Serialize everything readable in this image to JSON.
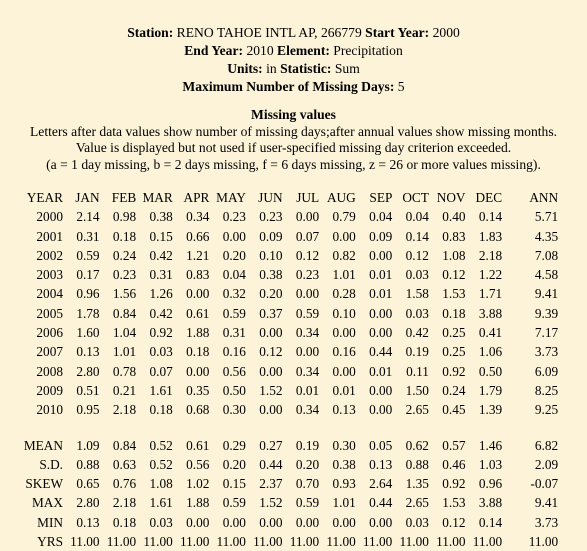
{
  "header": {
    "station_label": "Station:",
    "station_value": "RENO TAHOE INTL AP, 266779",
    "start_year_label": "Start Year:",
    "start_year_value": "2000",
    "end_year_label": "End Year:",
    "end_year_value": "2010",
    "element_label": "Element:",
    "element_value": "Precipitation",
    "units_label": "Units:",
    "units_value": "in",
    "statistic_label": "Statistic:",
    "statistic_value": "Sum",
    "max_missing_label": "Maximum Number of Missing Days:",
    "max_missing_value": "5"
  },
  "missing": {
    "title": "Missing values",
    "line1": "Letters after data values show number of missing days;after annual values show missing months.",
    "line2": "Value is displayed but not used if user-specified missing day criterion exceeded.",
    "line3": "(a = 1 day missing, b = 2 days missing, f = 6 days missing, z = 26 or more values missing)."
  },
  "table": {
    "columns": [
      "YEAR",
      "JAN",
      "FEB",
      "MAR",
      "APR",
      "MAY",
      "JUN",
      "JUL",
      "AUG",
      "SEP",
      "OCT",
      "NOV",
      "DEC",
      "ANN"
    ],
    "rows": [
      [
        "2000",
        "2.14",
        "0.98",
        "0.38",
        "0.34",
        "0.23",
        "0.23",
        "0.00",
        "0.79",
        "0.04",
        "0.04",
        "0.40",
        "0.14",
        "5.71"
      ],
      [
        "2001",
        "0.31",
        "0.18",
        "0.15",
        "0.66",
        "0.00",
        "0.09",
        "0.07",
        "0.00",
        "0.09",
        "0.14",
        "0.83",
        "1.83",
        "4.35"
      ],
      [
        "2002",
        "0.59",
        "0.24",
        "0.42",
        "1.21",
        "0.20",
        "0.10",
        "0.12",
        "0.82",
        "0.00",
        "0.12",
        "1.08",
        "2.18",
        "7.08"
      ],
      [
        "2003",
        "0.17",
        "0.23",
        "0.31",
        "0.83",
        "0.04",
        "0.38",
        "0.23",
        "1.01",
        "0.01",
        "0.03",
        "0.12",
        "1.22",
        "4.58"
      ],
      [
        "2004",
        "0.96",
        "1.56",
        "1.26",
        "0.00",
        "0.32",
        "0.20",
        "0.00",
        "0.28",
        "0.01",
        "1.58",
        "1.53",
        "1.71",
        "9.41"
      ],
      [
        "2005",
        "1.78",
        "0.84",
        "0.42",
        "0.61",
        "0.59",
        "0.37",
        "0.59",
        "0.10",
        "0.00",
        "0.03",
        "0.18",
        "3.88",
        "9.39"
      ],
      [
        "2006",
        "1.60",
        "1.04",
        "0.92",
        "1.88",
        "0.31",
        "0.00",
        "0.34",
        "0.00",
        "0.00",
        "0.42",
        "0.25",
        "0.41",
        "7.17"
      ],
      [
        "2007",
        "0.13",
        "1.01",
        "0.03",
        "0.18",
        "0.16",
        "0.12",
        "0.00",
        "0.16",
        "0.44",
        "0.19",
        "0.25",
        "1.06",
        "3.73"
      ],
      [
        "2008",
        "2.80",
        "0.78",
        "0.07",
        "0.00",
        "0.56",
        "0.00",
        "0.34",
        "0.00",
        "0.01",
        "0.11",
        "0.92",
        "0.50",
        "6.09"
      ],
      [
        "2009",
        "0.51",
        "0.21",
        "1.61",
        "0.35",
        "0.50",
        "1.52",
        "0.01",
        "0.01",
        "0.00",
        "1.50",
        "0.24",
        "1.79",
        "8.25"
      ],
      [
        "2010",
        "0.95",
        "2.18",
        "0.18",
        "0.68",
        "0.30",
        "0.00",
        "0.34",
        "0.13",
        "0.00",
        "2.65",
        "0.45",
        "1.39",
        "9.25"
      ]
    ],
    "stats": [
      [
        "MEAN",
        "1.09",
        "0.84",
        "0.52",
        "0.61",
        "0.29",
        "0.27",
        "0.19",
        "0.30",
        "0.05",
        "0.62",
        "0.57",
        "1.46",
        "6.82"
      ],
      [
        "S.D.",
        "0.88",
        "0.63",
        "0.52",
        "0.56",
        "0.20",
        "0.44",
        "0.20",
        "0.38",
        "0.13",
        "0.88",
        "0.46",
        "1.03",
        "2.09"
      ],
      [
        "SKEW",
        "0.65",
        "0.76",
        "1.08",
        "1.02",
        "0.15",
        "2.37",
        "0.70",
        "0.93",
        "2.64",
        "1.35",
        "0.92",
        "0.96",
        "-0.07"
      ],
      [
        "MAX",
        "2.80",
        "2.18",
        "1.61",
        "1.88",
        "0.59",
        "1.52",
        "0.59",
        "1.01",
        "0.44",
        "2.65",
        "1.53",
        "3.88",
        "9.41"
      ],
      [
        "MIN",
        "0.13",
        "0.18",
        "0.03",
        "0.00",
        "0.00",
        "0.00",
        "0.00",
        "0.00",
        "0.00",
        "0.03",
        "0.12",
        "0.14",
        "3.73"
      ],
      [
        "YRS",
        "11.00",
        "11.00",
        "11.00",
        "11.00",
        "11.00",
        "11.00",
        "11.00",
        "11.00",
        "11.00",
        "11.00",
        "11.00",
        "11.00",
        "11.00"
      ]
    ]
  }
}
